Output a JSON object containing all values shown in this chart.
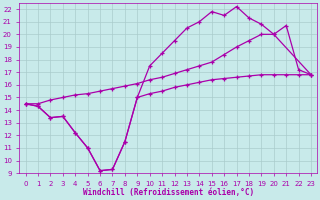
{
  "bg_color": "#c8eaea",
  "line_color": "#aa00aa",
  "grid_color": "#aacccc",
  "xlabel": "Windchill (Refroidissement éolien,°C)",
  "xlabel_color": "#aa00aa",
  "tick_color": "#aa00aa",
  "xlim": [
    -0.5,
    23.5
  ],
  "ylim": [
    9,
    22.5
  ],
  "yticks": [
    9,
    10,
    11,
    12,
    13,
    14,
    15,
    16,
    17,
    18,
    19,
    20,
    21,
    22
  ],
  "xticks": [
    0,
    1,
    2,
    3,
    4,
    5,
    6,
    7,
    8,
    9,
    10,
    11,
    12,
    13,
    14,
    15,
    16,
    17,
    18,
    19,
    20,
    21,
    22,
    23
  ],
  "lines": [
    {
      "x": [
        0,
        1,
        2,
        3,
        4,
        5,
        6,
        7,
        8,
        9,
        10,
        11,
        12,
        13,
        14,
        15,
        16,
        17,
        18,
        19,
        20,
        21,
        22,
        23
      ],
      "y": [
        14.5,
        14.3,
        13.4,
        13.5,
        12.2,
        11.0,
        9.2,
        9.3,
        11.5,
        15.0,
        15.3,
        15.5,
        15.8,
        16.0,
        16.2,
        16.4,
        16.5,
        16.6,
        16.7,
        16.8,
        16.8,
        16.8,
        16.8,
        16.8
      ]
    },
    {
      "x": [
        0,
        1,
        2,
        3,
        4,
        5,
        6,
        7,
        8,
        9,
        10,
        11,
        12,
        13,
        14,
        15,
        16,
        17,
        18,
        19,
        20,
        21,
        22,
        23
      ],
      "y": [
        14.5,
        14.3,
        13.4,
        13.5,
        12.2,
        11.0,
        9.2,
        9.3,
        11.5,
        15.0,
        17.5,
        18.5,
        19.5,
        20.5,
        21.0,
        21.8,
        21.5,
        22.2,
        21.3,
        20.8,
        20.0,
        20.7,
        17.2,
        16.8
      ]
    },
    {
      "x": [
        0,
        1,
        2,
        3,
        4,
        5,
        6,
        7,
        8,
        9,
        10,
        11,
        12,
        13,
        14,
        15,
        16,
        17,
        18,
        19,
        20,
        23
      ],
      "y": [
        14.5,
        14.5,
        14.8,
        15.0,
        15.2,
        15.3,
        15.5,
        15.7,
        15.9,
        16.1,
        16.4,
        16.6,
        16.9,
        17.2,
        17.5,
        17.8,
        18.4,
        19.0,
        19.5,
        20.0,
        20.0,
        16.8
      ]
    }
  ]
}
